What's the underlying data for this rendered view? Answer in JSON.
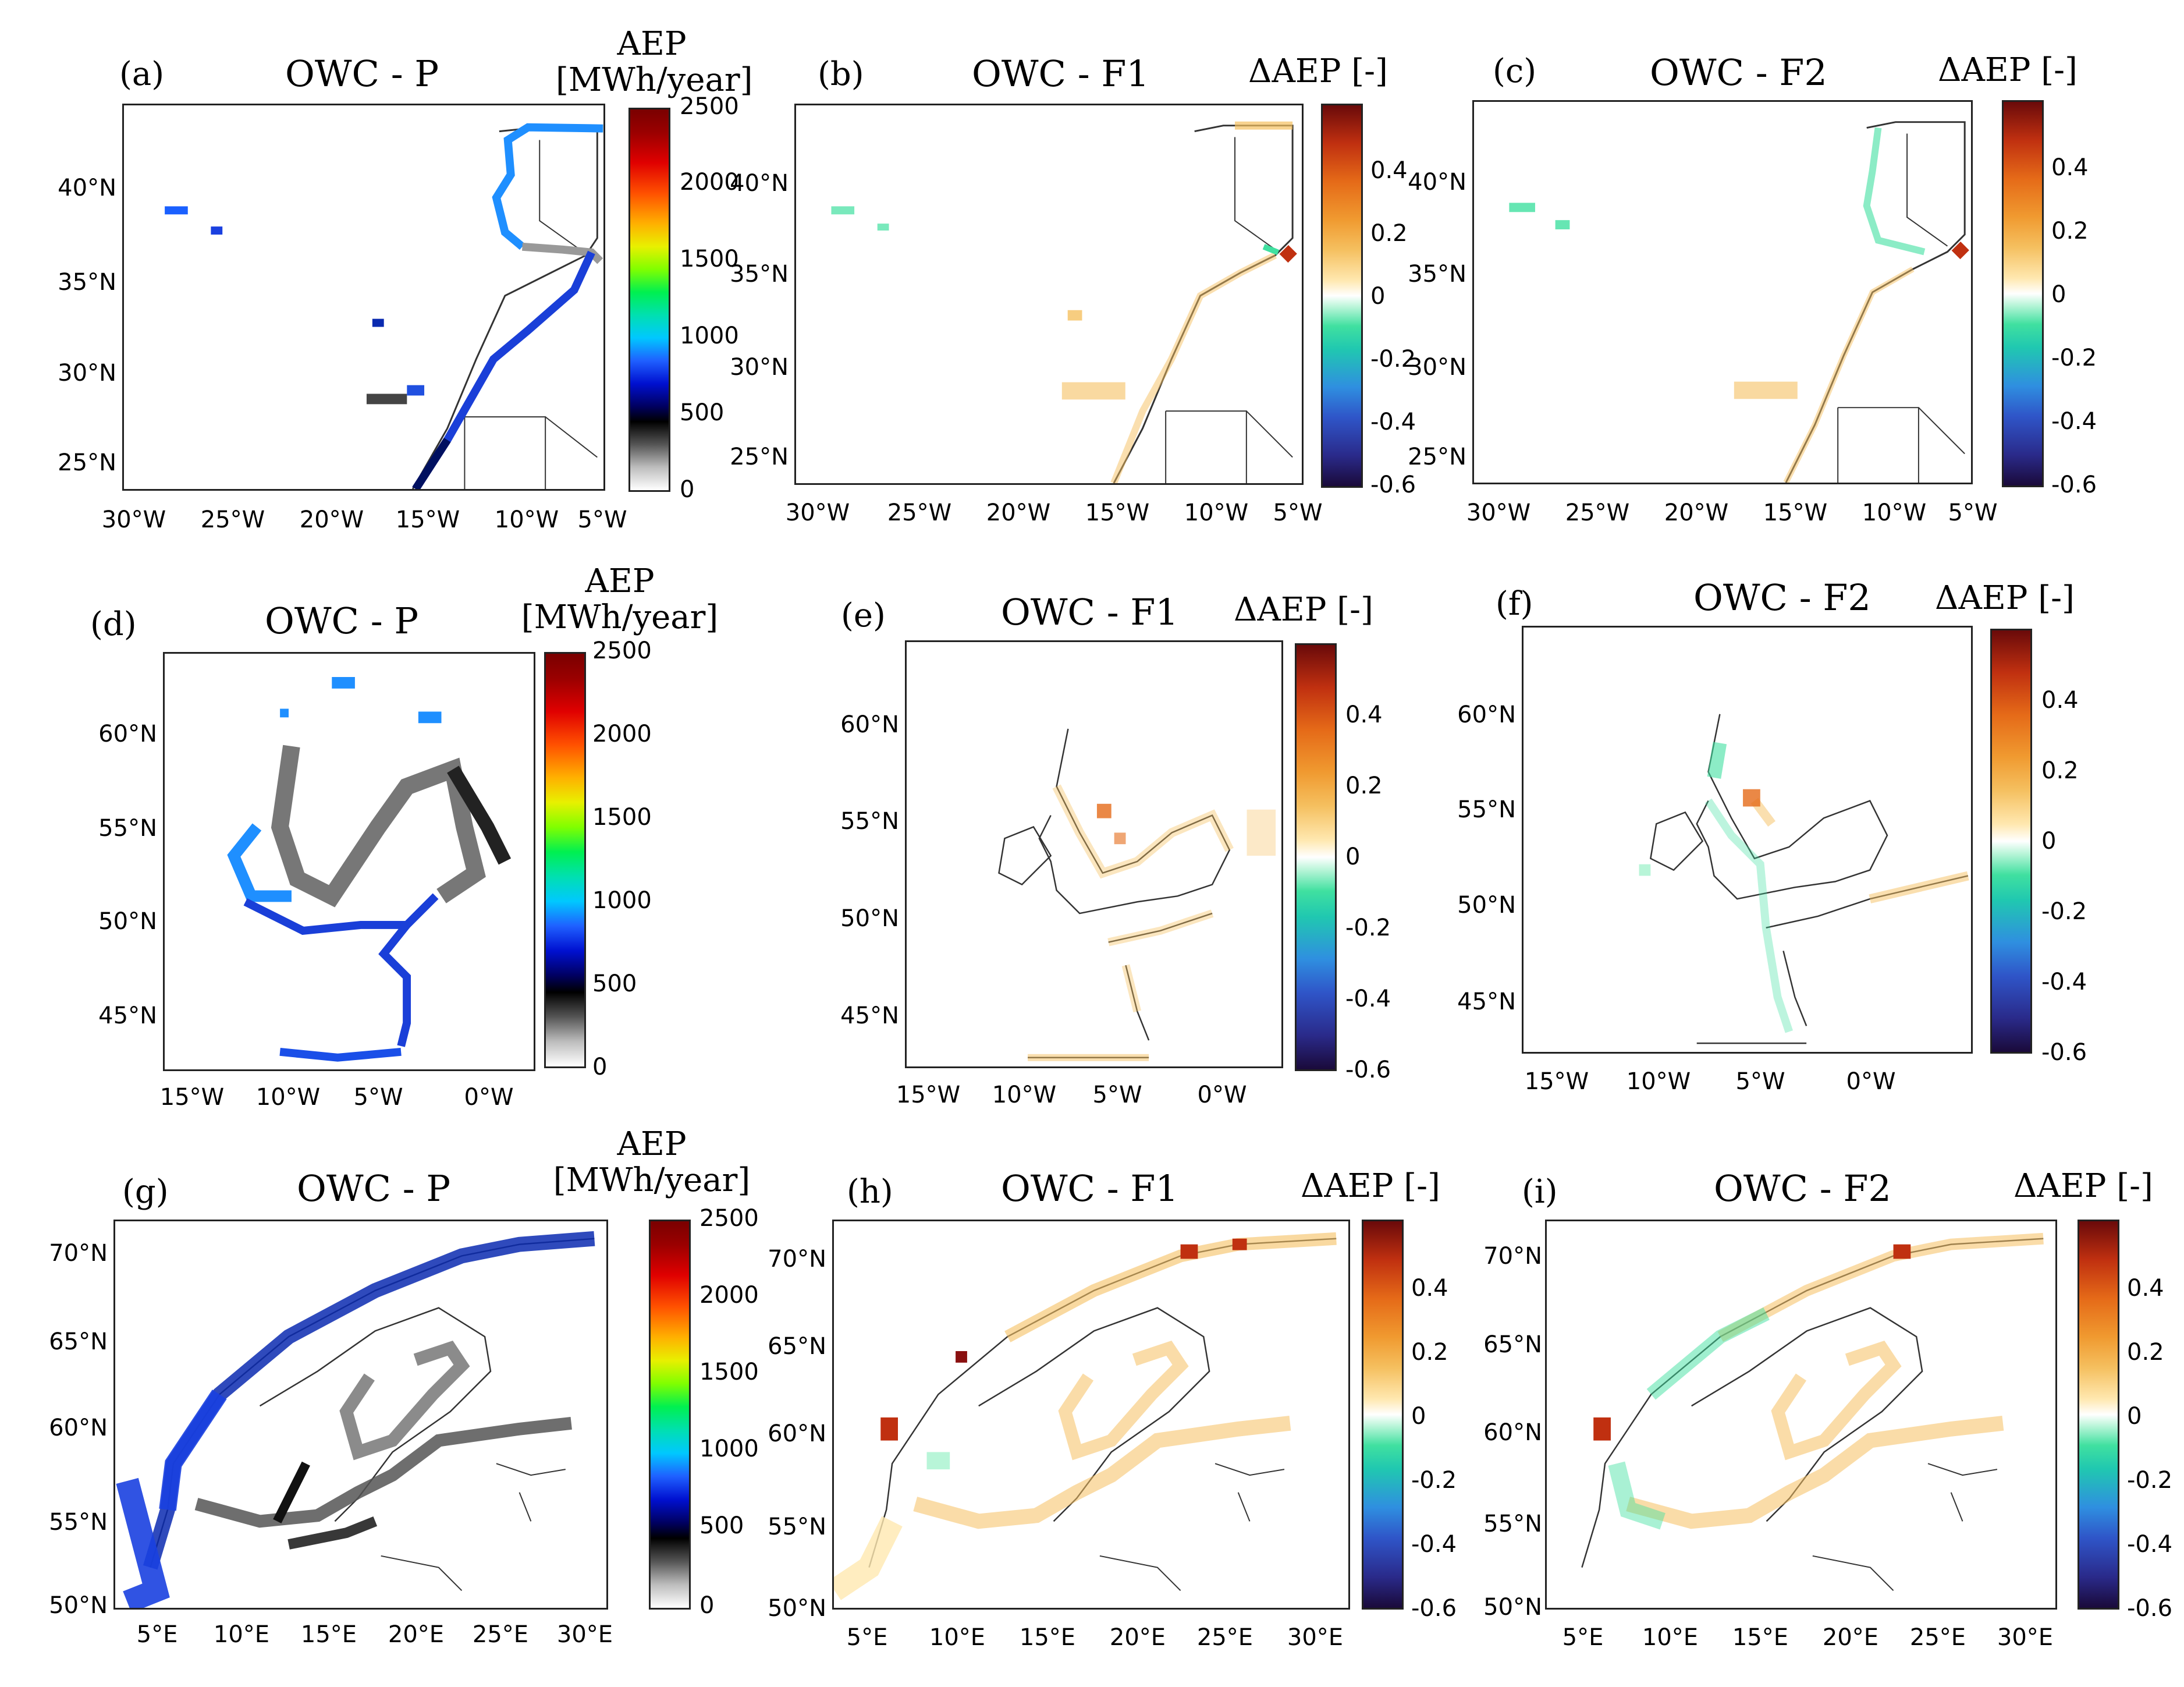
{
  "panels": [
    {
      "id": "a",
      "letter": "(a)",
      "title": "OWC - P",
      "cb_title": "AEP\n[MWh/year]",
      "cb_type": "aep",
      "cb_ticks": [
        "2500",
        "2000",
        "1500",
        "1000",
        "500",
        "0"
      ],
      "lat_ticks": [
        "40°N",
        "35°N",
        "30°N",
        "25°N"
      ],
      "lon_ticks": [
        "30°W",
        "25°W",
        "20°W",
        "15°W",
        "10°W",
        "5°W"
      ]
    },
    {
      "id": "b",
      "letter": "(b)",
      "title": "OWC - F1",
      "cb_title": "ΔAEP [-]",
      "cb_type": "delta",
      "cb_ticks": [
        "0.4",
        "0.2",
        "0",
        "-0.2",
        "-0.4",
        "-0.6"
      ],
      "lat_ticks": [
        "40°N",
        "35°N",
        "30°N",
        "25°N"
      ],
      "lon_ticks": [
        "30°W",
        "25°W",
        "20°W",
        "15°W",
        "10°W",
        "5°W"
      ]
    },
    {
      "id": "c",
      "letter": "(c)",
      "title": "OWC - F2",
      "cb_title": "ΔAEP [-]",
      "cb_type": "delta",
      "cb_ticks": [
        "0.4",
        "0.2",
        "0",
        "-0.2",
        "-0.4",
        "-0.6"
      ],
      "lat_ticks": [
        "40°N",
        "35°N",
        "30°N",
        "25°N"
      ],
      "lon_ticks": [
        "30°W",
        "25°W",
        "20°W",
        "15°W",
        "10°W",
        "5°W"
      ]
    },
    {
      "id": "d",
      "letter": "(d)",
      "title": "OWC - P",
      "cb_title": "AEP\n[MWh/year]",
      "cb_type": "aep",
      "cb_ticks": [
        "2500",
        "2000",
        "1500",
        "1000",
        "500",
        "0"
      ],
      "lat_ticks": [
        "60°N",
        "55°N",
        "50°N",
        "45°N"
      ],
      "lon_ticks": [
        "15°W",
        "10°W",
        "5°W",
        "0°W"
      ]
    },
    {
      "id": "e",
      "letter": "(e)",
      "title": "OWC - F1",
      "cb_title": "ΔAEP [-]",
      "cb_type": "delta",
      "cb_ticks": [
        "0.4",
        "0.2",
        "0",
        "-0.2",
        "-0.4",
        "-0.6"
      ],
      "lat_ticks": [
        "60°N",
        "55°N",
        "50°N",
        "45°N"
      ],
      "lon_ticks": [
        "15°W",
        "10°W",
        "5°W",
        "0°W"
      ]
    },
    {
      "id": "f",
      "letter": "(f)",
      "title": "OWC - F2",
      "cb_title": "ΔAEP [-]",
      "cb_type": "delta",
      "cb_ticks": [
        "0.4",
        "0.2",
        "0",
        "-0.2",
        "-0.4",
        "-0.6"
      ],
      "lat_ticks": [
        "60°N",
        "55°N",
        "50°N",
        "45°N"
      ],
      "lon_ticks": [
        "15°W",
        "10°W",
        "5°W",
        "0°W"
      ]
    },
    {
      "id": "g",
      "letter": "(g)",
      "title": "OWC - P",
      "cb_title": "AEP\n[MWh/year]",
      "cb_type": "aep",
      "cb_ticks": [
        "2500",
        "2000",
        "1500",
        "1000",
        "500",
        "0"
      ],
      "lat_ticks": [
        "70°N",
        "65°N",
        "60°N",
        "55°N",
        "50°N"
      ],
      "lon_ticks": [
        "5°E",
        "10°E",
        "15°E",
        "20°E",
        "25°E",
        "30°E"
      ]
    },
    {
      "id": "h",
      "letter": "(h)",
      "title": "OWC - F1",
      "cb_title": "ΔAEP [-]",
      "cb_type": "delta",
      "cb_ticks": [
        "0.4",
        "0.2",
        "0",
        "-0.2",
        "-0.4",
        "-0.6"
      ],
      "lat_ticks": [
        "70°N",
        "65°N",
        "60°N",
        "55°N",
        "50°N"
      ],
      "lon_ticks": [
        "5°E",
        "10°E",
        "15°E",
        "20°E",
        "25°E",
        "30°E"
      ]
    },
    {
      "id": "i",
      "letter": "(i)",
      "title": "OWC - F2",
      "cb_title": "ΔAEP [-]",
      "cb_type": "delta",
      "cb_ticks": [
        "0.4",
        "0.2",
        "0",
        "-0.2",
        "-0.4",
        "-0.6"
      ],
      "lat_ticks": [
        "70°N",
        "65°N",
        "60°N",
        "55°N",
        "50°N"
      ],
      "lon_ticks": [
        "5°E",
        "10°E",
        "15°E",
        "20°E",
        "25°E",
        "30°E"
      ]
    }
  ],
  "colors": {
    "aep_high": "#7a0000",
    "aep_mid": "#1f60ff",
    "aep_low": "#000000",
    "delta_pos": "#f09a30",
    "delta_neg": "#20c8b0"
  }
}
